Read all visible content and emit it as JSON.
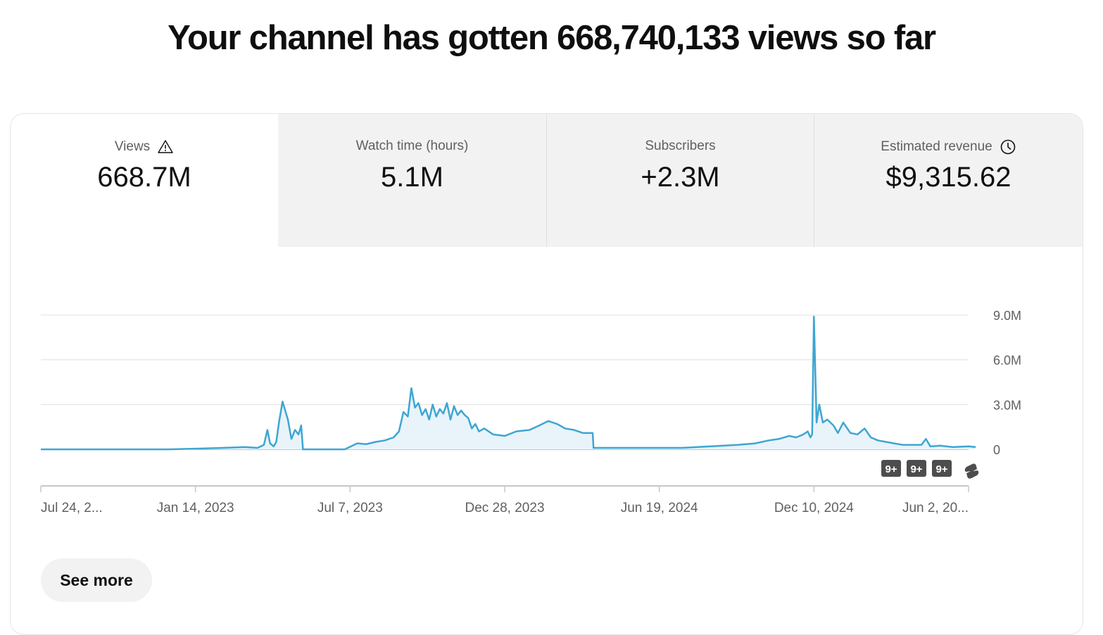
{
  "headline": "Your channel has gotten 668,740,133 views so far",
  "tabs": [
    {
      "label": "Views",
      "value": "668.7M",
      "icon": "warning-icon",
      "active": true
    },
    {
      "label": "Watch time (hours)",
      "value": "5.1M",
      "icon": null,
      "active": false
    },
    {
      "label": "Subscribers",
      "value": "+2.3M",
      "icon": null,
      "active": false
    },
    {
      "label": "Estimated revenue",
      "value": "$9,315.62",
      "icon": "clock-icon",
      "active": false
    }
  ],
  "markers": [
    "9+",
    "9+",
    "9+"
  ],
  "see_more_label": "See more",
  "colors": {
    "line": "#3ea6d1",
    "fill": "#e8f4fa",
    "accent_tab_bg": "#f2f2f2"
  },
  "chart_data": {
    "type": "area",
    "title": "",
    "xlabel": "",
    "ylabel": "",
    "ylim": [
      0,
      9000000
    ],
    "y_ticks": [
      {
        "value": 9000000,
        "label": "9.0M"
      },
      {
        "value": 6000000,
        "label": "6.0M"
      },
      {
        "value": 3000000,
        "label": "3.0M"
      },
      {
        "value": 0,
        "label": "0"
      }
    ],
    "x_ticks": [
      "Jul 24, 2...",
      "Jan 14, 2023",
      "Jul 7, 2023",
      "Dec 28, 2023",
      "Jun 19, 2024",
      "Dec 10, 2024",
      "Jun 2, 20..."
    ],
    "x_tick_dates": [
      "2022-07-24",
      "2023-01-14",
      "2023-07-07",
      "2023-12-28",
      "2024-06-19",
      "2024-12-10",
      "2025-06-02"
    ],
    "grid": true,
    "series": [
      {
        "x": [
          "2022-07-24",
          "2022-10-01",
          "2022-12-15",
          "2023-01-20",
          "2023-02-15",
          "2023-03-10",
          "2023-03-25",
          "2023-04-01",
          "2023-04-05",
          "2023-04-08",
          "2023-04-12",
          "2023-04-15",
          "2023-04-18",
          "2023-04-22",
          "2023-04-28",
          "2023-05-02",
          "2023-05-06",
          "2023-05-10",
          "2023-05-13",
          "2023-05-15",
          "2023-05-18",
          "2023-05-22",
          "2023-05-25",
          "2023-05-28",
          "2023-06-01",
          "2023-06-04",
          "2023-06-07",
          "2023-07-01",
          "2023-07-15",
          "2023-07-25",
          "2023-08-05",
          "2023-08-15",
          "2023-08-25",
          "2023-08-31",
          "2023-09-05",
          "2023-09-10",
          "2023-09-14",
          "2023-09-18",
          "2023-09-22",
          "2023-09-26",
          "2023-09-30",
          "2023-10-04",
          "2023-10-08",
          "2023-10-12",
          "2023-10-16",
          "2023-10-20",
          "2023-10-24",
          "2023-10-28",
          "2023-11-01",
          "2023-11-05",
          "2023-11-09",
          "2023-11-13",
          "2023-11-17",
          "2023-11-21",
          "2023-11-25",
          "2023-11-29",
          "2023-12-05",
          "2023-12-15",
          "2023-12-28",
          "2024-01-10",
          "2024-01-25",
          "2024-02-05",
          "2024-02-15",
          "2024-02-25",
          "2024-03-05",
          "2024-03-15",
          "2024-03-25",
          "2024-04-05",
          "2024-04-06",
          "2024-05-01",
          "2024-06-01",
          "2024-06-19",
          "2024-07-15",
          "2024-08-15",
          "2024-09-15",
          "2024-10-05",
          "2024-10-20",
          "2024-11-01",
          "2024-11-12",
          "2024-11-20",
          "2024-11-28",
          "2024-12-03",
          "2024-12-06",
          "2024-12-08",
          "2024-12-10",
          "2024-12-13",
          "2024-12-16",
          "2024-12-20",
          "2024-12-25",
          "2025-01-01",
          "2025-01-06",
          "2025-01-12",
          "2025-01-20",
          "2025-01-28",
          "2025-02-05",
          "2025-02-12",
          "2025-02-20",
          "2025-03-01",
          "2025-03-10",
          "2025-03-20",
          "2025-04-01",
          "2025-04-10",
          "2025-04-15",
          "2025-04-20",
          "2025-05-01",
          "2025-05-15",
          "2025-06-02",
          "2025-06-10"
        ],
        "y": [
          0,
          0,
          0,
          50000,
          100000,
          150000,
          100000,
          300000,
          1300000,
          400000,
          200000,
          500000,
          1800000,
          3200000,
          2000000,
          700000,
          1300000,
          1000000,
          1600000,
          0,
          0,
          0,
          0,
          0,
          0,
          0,
          0,
          0,
          400000,
          350000,
          500000,
          600000,
          800000,
          1200000,
          2500000,
          2200000,
          4100000,
          2800000,
          3100000,
          2300000,
          2700000,
          2000000,
          3000000,
          2200000,
          2700000,
          2400000,
          3100000,
          2000000,
          2900000,
          2300000,
          2600000,
          2300000,
          2100000,
          1400000,
          1700000,
          1200000,
          1400000,
          1000000,
          900000,
          1200000,
          1300000,
          1600000,
          1900000,
          1700000,
          1400000,
          1300000,
          1100000,
          1100000,
          100000,
          100000,
          100000,
          100000,
          100000,
          200000,
          300000,
          400000,
          600000,
          700000,
          900000,
          800000,
          1000000,
          1200000,
          800000,
          1000000,
          8900000,
          1800000,
          3000000,
          1800000,
          2000000,
          1600000,
          1100000,
          1800000,
          1100000,
          1000000,
          1400000,
          800000,
          600000,
          500000,
          400000,
          300000,
          300000,
          300000,
          700000,
          200000,
          250000,
          150000,
          200000,
          150000
        ]
      }
    ]
  }
}
